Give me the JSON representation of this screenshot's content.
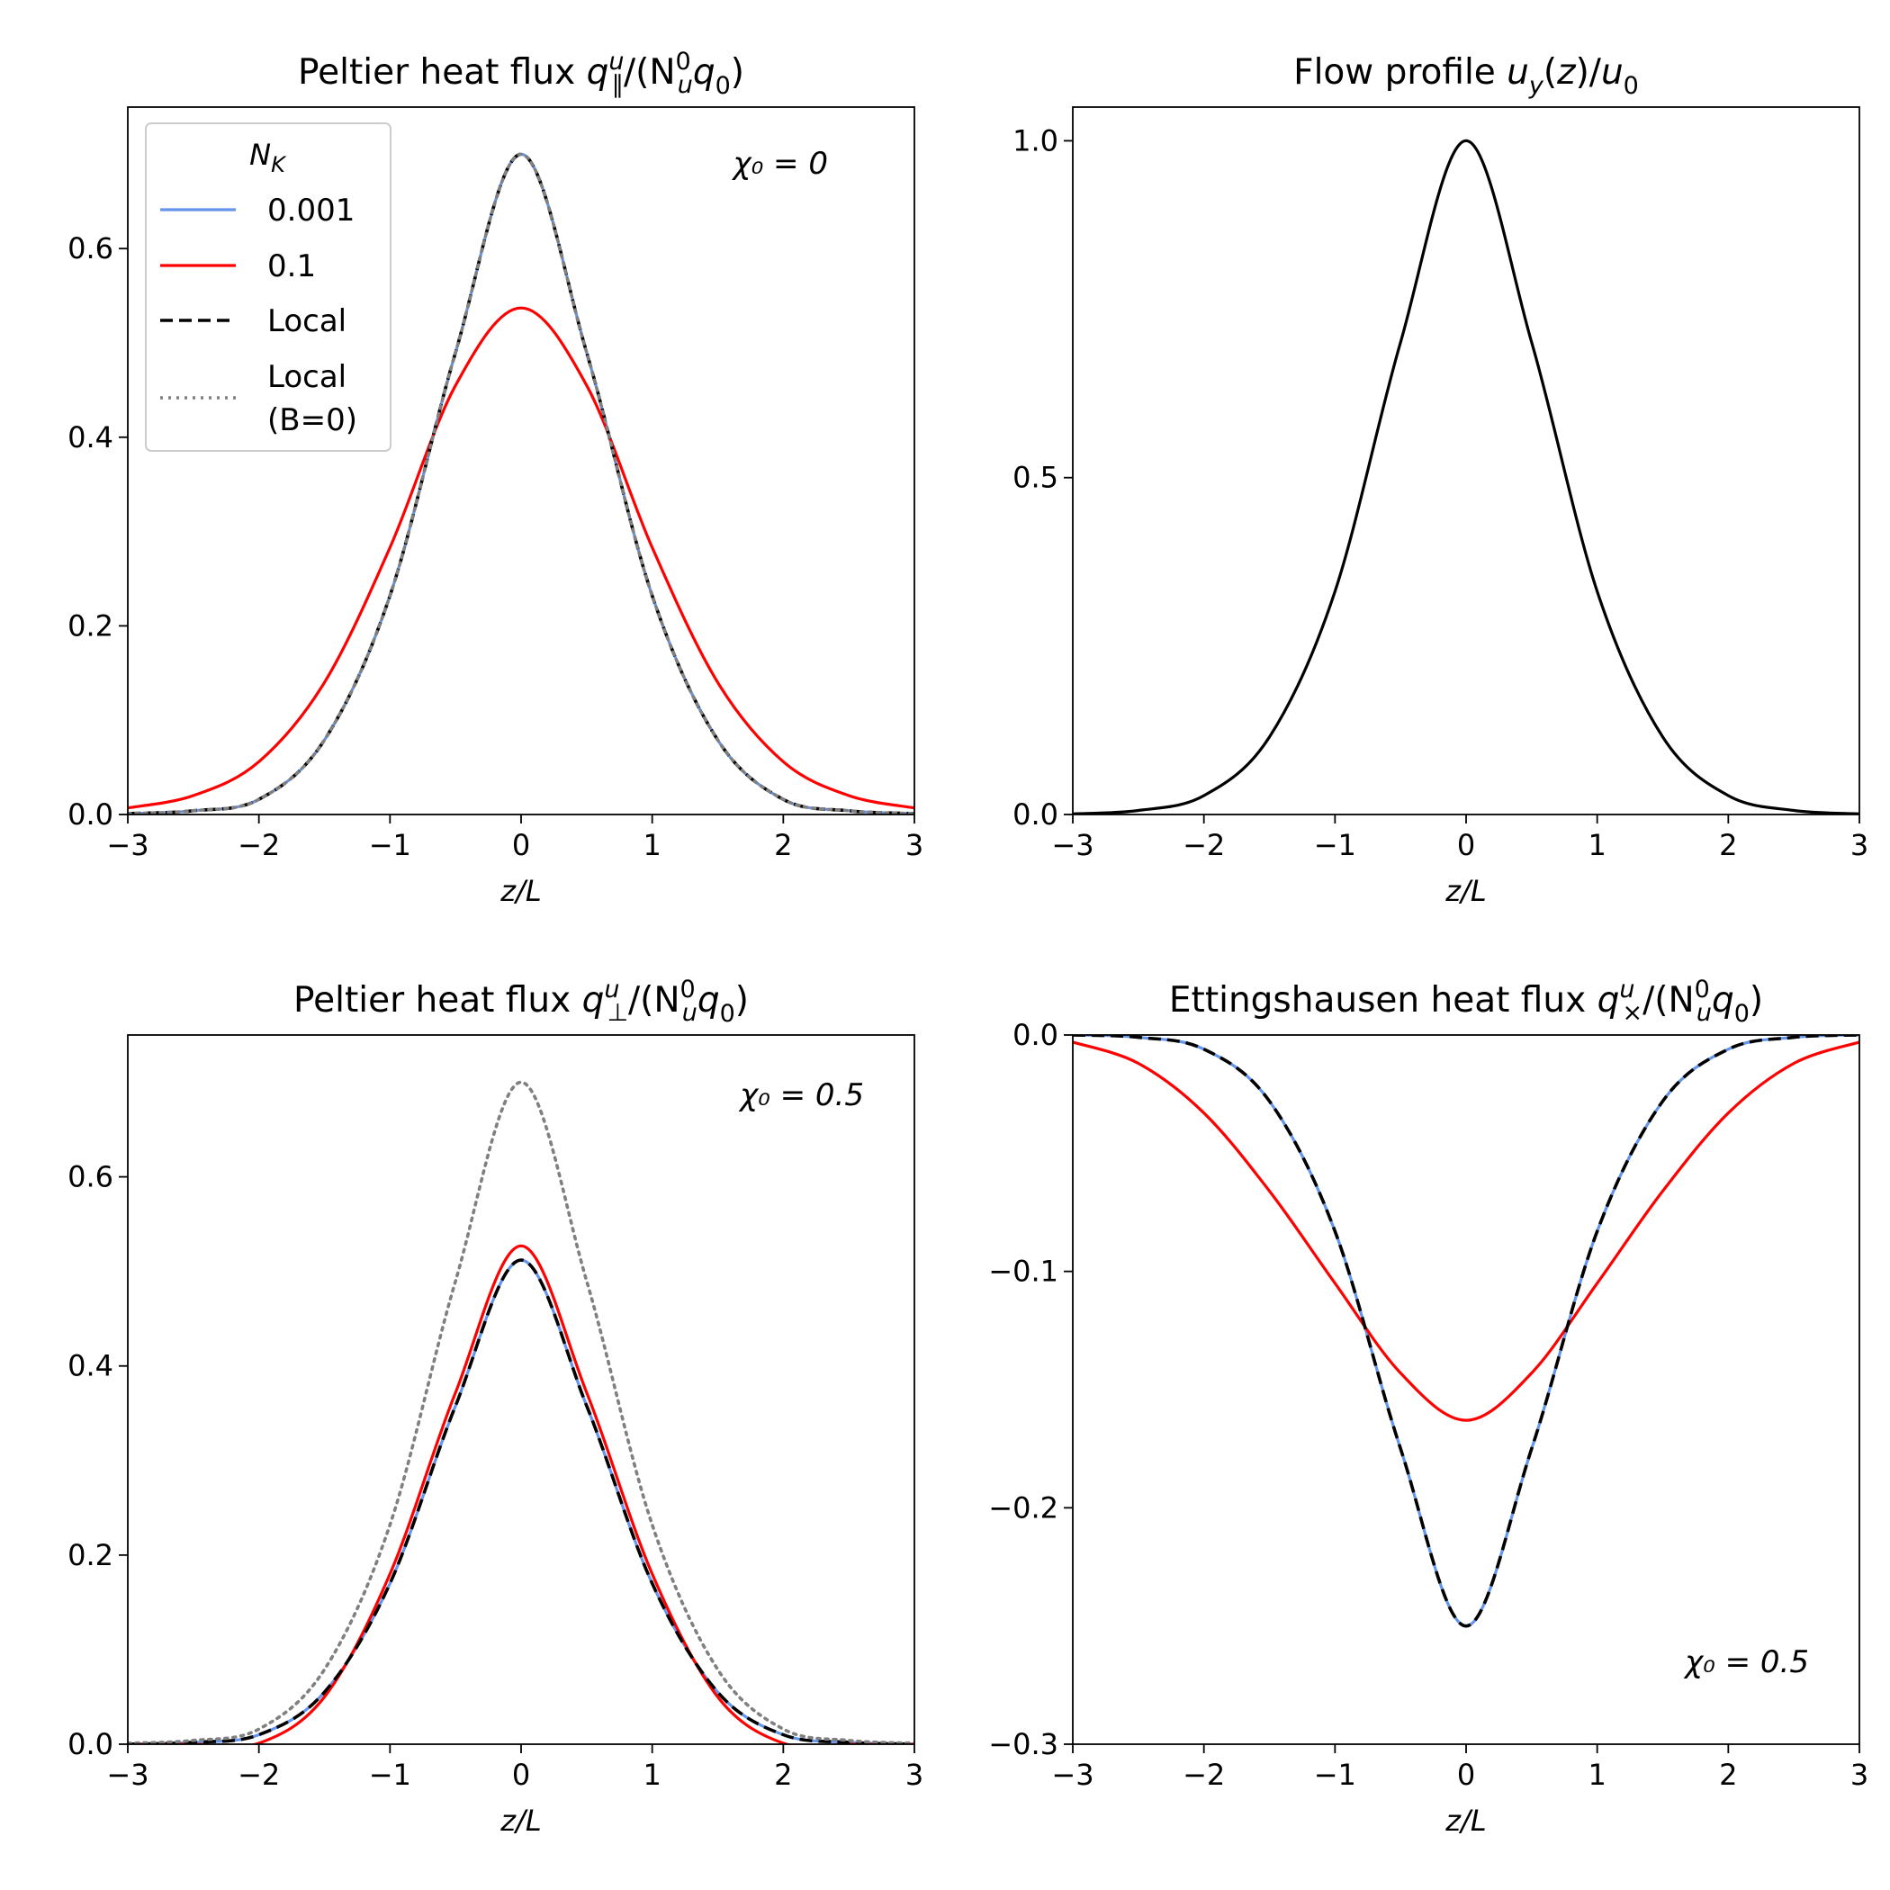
{
  "chart_data": [
    {
      "id": "q_par",
      "type": "line",
      "title_parts": [
        "Peltier heat flux q",
        "u",
        "∥",
        "/(N",
        "0",
        "u",
        "q",
        "0",
        ")"
      ],
      "xlabel": "z/L",
      "xlim": [
        -3,
        3
      ],
      "ylim": [
        0,
        0.75
      ],
      "xticks": [
        -3,
        -2,
        -1,
        0,
        1,
        2,
        3
      ],
      "xtick_labels": [
        "−3",
        "−2",
        "−1",
        "0",
        "1",
        "2",
        "3"
      ],
      "yticks": [
        0.0,
        0.2,
        0.4,
        0.6
      ],
      "ytick_labels": [
        "0.0",
        "0.2",
        "0.4",
        "0.6"
      ],
      "annotation": "χ₀ = 0",
      "legend": {
        "title": "N_K",
        "position": "upper-left",
        "entries": [
          "0.001",
          "0.1",
          "Local",
          "Local",
          "(B=0)"
        ]
      },
      "x": [
        -3,
        -2.5,
        -2,
        -1.5,
        -1,
        -0.5,
        0,
        0.5,
        1,
        1.5,
        2,
        2.5,
        3
      ],
      "series": [
        {
          "name": "0.001",
          "color": "#6495ED",
          "style": "solid",
          "values": [
            0.001,
            0.004,
            0.016,
            0.079,
            0.232,
            0.49,
            0.7,
            0.49,
            0.232,
            0.079,
            0.016,
            0.004,
            0.001
          ]
        },
        {
          "name": "0.1",
          "color": "#FF0000",
          "style": "solid",
          "values": [
            0.007,
            0.02,
            0.056,
            0.14,
            0.283,
            0.455,
            0.537,
            0.455,
            0.283,
            0.14,
            0.056,
            0.02,
            0.007
          ]
        },
        {
          "name": "Local",
          "color": "#000000",
          "style": "dashed",
          "values": [
            0.001,
            0.004,
            0.016,
            0.079,
            0.232,
            0.49,
            0.7,
            0.49,
            0.232,
            0.079,
            0.016,
            0.004,
            0.001
          ]
        },
        {
          "name": "Local (B=0)",
          "color": "#808080",
          "style": "dotted",
          "values": [
            0.001,
            0.004,
            0.016,
            0.079,
            0.232,
            0.49,
            0.7,
            0.49,
            0.232,
            0.079,
            0.016,
            0.004,
            0.001
          ]
        }
      ]
    },
    {
      "id": "flow",
      "type": "line",
      "title_parts": [
        "Flow profile u",
        "y",
        "(z)/u",
        "0"
      ],
      "xlabel": "z/L",
      "xlim": [
        -3,
        3
      ],
      "ylim": [
        0,
        1.05
      ],
      "xticks": [
        -3,
        -2,
        -1,
        0,
        1,
        2,
        3
      ],
      "xtick_labels": [
        "−3",
        "−2",
        "−1",
        "0",
        "1",
        "2",
        "3"
      ],
      "yticks": [
        0.0,
        0.5,
        1.0
      ],
      "ytick_labels": [
        "0.0",
        "0.5",
        "1.0"
      ],
      "x": [
        -3,
        -2.5,
        -2,
        -1.5,
        -1,
        -0.5,
        0,
        0.5,
        1,
        1.5,
        2,
        2.5,
        3
      ],
      "series": [
        {
          "name": "u_y",
          "color": "#000000",
          "style": "solid",
          "values": [
            0.001,
            0.006,
            0.028,
            0.115,
            0.331,
            0.701,
            1.0,
            0.701,
            0.331,
            0.115,
            0.028,
            0.006,
            0.001
          ]
        }
      ]
    },
    {
      "id": "q_perp",
      "type": "line",
      "title_parts": [
        "Peltier heat flux q",
        "u",
        "⊥",
        "/(N",
        "0",
        "u",
        "q",
        "0",
        ")"
      ],
      "xlabel": "z/L",
      "xlim": [
        -3,
        3
      ],
      "ylim": [
        0,
        0.75
      ],
      "xticks": [
        -3,
        -2,
        -1,
        0,
        1,
        2,
        3
      ],
      "xtick_labels": [
        "−3",
        "−2",
        "−1",
        "0",
        "1",
        "2",
        "3"
      ],
      "yticks": [
        0.0,
        0.2,
        0.4,
        0.6
      ],
      "ytick_labels": [
        "0.0",
        "0.2",
        "0.4",
        "0.6"
      ],
      "annotation": "χ₀ = 0.5",
      "x": [
        -3,
        -2.5,
        -2,
        -1.5,
        -1,
        -0.5,
        0,
        0.5,
        1,
        1.5,
        2,
        2.5,
        3
      ],
      "series": [
        {
          "name": "0.001",
          "color": "#6495ED",
          "style": "solid",
          "values": [
            0.0,
            0.002,
            0.01,
            0.055,
            0.17,
            0.358,
            0.512,
            0.358,
            0.17,
            0.055,
            0.01,
            0.002,
            0.0
          ]
        },
        {
          "name": "0.1",
          "color": "#FF0000",
          "style": "solid",
          "values": [
            0.0,
            0.0,
            0.001,
            0.05,
            0.18,
            0.372,
            0.527,
            0.372,
            0.18,
            0.05,
            0.001,
            0.0,
            0.0
          ]
        },
        {
          "name": "Local",
          "color": "#000000",
          "style": "dashed",
          "values": [
            0.0,
            0.002,
            0.01,
            0.055,
            0.17,
            0.358,
            0.512,
            0.358,
            0.17,
            0.055,
            0.01,
            0.002,
            0.0
          ]
        },
        {
          "name": "Local (B=0)",
          "color": "#808080",
          "style": "dotted",
          "values": [
            0.001,
            0.004,
            0.016,
            0.079,
            0.232,
            0.49,
            0.7,
            0.49,
            0.232,
            0.079,
            0.016,
            0.004,
            0.001
          ]
        }
      ]
    },
    {
      "id": "q_cross",
      "type": "line",
      "title_parts": [
        "Ettingshausen heat flux q",
        "u",
        "×",
        "/(N",
        "0",
        "u",
        "q",
        "0",
        ")"
      ],
      "xlabel": "z/L",
      "xlim": [
        -3,
        3
      ],
      "ylim": [
        -0.3,
        0
      ],
      "xticks": [
        -3,
        -2,
        -1,
        0,
        1,
        2,
        3
      ],
      "xtick_labels": [
        "−3",
        "−2",
        "−1",
        "0",
        "1",
        "2",
        "3"
      ],
      "yticks": [
        -0.3,
        -0.2,
        -0.1,
        0.0
      ],
      "ytick_labels": [
        "−0.3",
        "−0.2",
        "−0.1",
        "0.0"
      ],
      "annotation": "χ₀ = 0.5",
      "x": [
        -3,
        -2.5,
        -2,
        -1.5,
        -1,
        -0.5,
        0,
        0.5,
        1,
        1.5,
        2,
        2.5,
        3
      ],
      "series": [
        {
          "name": "0.001",
          "color": "#6495ED",
          "style": "solid",
          "values": [
            0.0,
            -0.001,
            -0.006,
            -0.028,
            -0.083,
            -0.175,
            -0.25,
            -0.175,
            -0.083,
            -0.028,
            -0.006,
            -0.001,
            0.0
          ]
        },
        {
          "name": "0.1",
          "color": "#FF0000",
          "style": "solid",
          "values": [
            -0.003,
            -0.012,
            -0.033,
            -0.066,
            -0.105,
            -0.143,
            -0.163,
            -0.143,
            -0.105,
            -0.066,
            -0.033,
            -0.012,
            -0.003
          ]
        },
        {
          "name": "Local",
          "color": "#000000",
          "style": "dashed",
          "values": [
            0.0,
            -0.001,
            -0.006,
            -0.028,
            -0.083,
            -0.175,
            -0.25,
            -0.175,
            -0.083,
            -0.028,
            -0.006,
            -0.001,
            0.0
          ]
        }
      ]
    }
  ]
}
